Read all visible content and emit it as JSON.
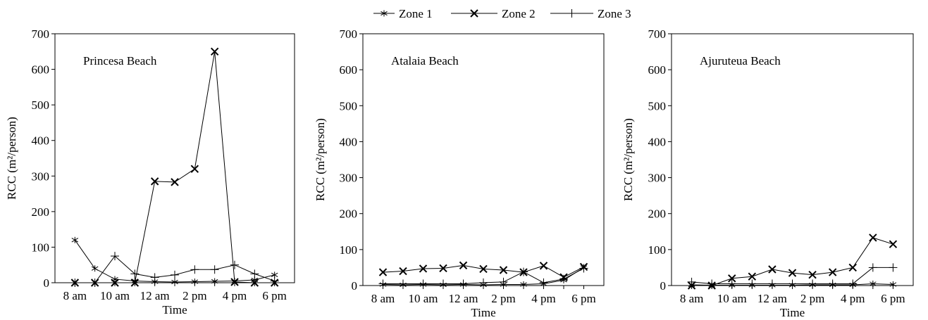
{
  "chart_data": [
    {
      "type": "line",
      "title": "Princesa Beach",
      "xlabel": "Time",
      "ylabel": "RCC (m²/person)",
      "ylim": [
        0,
        700
      ],
      "yticks": [
        "0",
        "100",
        "200",
        "300",
        "400",
        "500",
        "600",
        "700"
      ],
      "x_tick_labels": [
        "8 am",
        "10 am",
        "12 am",
        "2 pm",
        "4 pm",
        "6 pm"
      ],
      "x": [
        "8 am",
        "9 am",
        "10 am",
        "11 am",
        "12 am",
        "1 pm",
        "2 pm",
        "3 pm",
        "4 pm",
        "5 pm",
        "6 pm"
      ],
      "series": [
        {
          "name": "Zone 1",
          "values": [
            120,
            40,
            10,
            5,
            3,
            2,
            3,
            4,
            5,
            8,
            22
          ]
        },
        {
          "name": "Zone 2",
          "values": [
            0,
            0,
            0,
            0,
            285,
            283,
            320,
            650,
            2,
            0,
            0
          ]
        },
        {
          "name": "Zone 3",
          "values": [
            0,
            0,
            75,
            25,
            15,
            22,
            37,
            37,
            50,
            25,
            5
          ]
        }
      ],
      "grid": false,
      "legend": "top-center"
    },
    {
      "type": "line",
      "title": "Atalaia Beach",
      "xlabel": "Time",
      "ylabel": "RCC (m²/person)",
      "ylim": [
        0,
        700
      ],
      "yticks": [
        "0",
        "100",
        "200",
        "300",
        "400",
        "500",
        "600",
        "700"
      ],
      "x_tick_labels": [
        "8 am",
        "10 am",
        "12 am",
        "2 pm",
        "4 pm",
        "6 pm"
      ],
      "x": [
        "8 am",
        "9 am",
        "10 am",
        "11 am",
        "12 am",
        "1 pm",
        "2 pm",
        "3 pm",
        "4 pm",
        "5 pm",
        "6 pm"
      ],
      "series": [
        {
          "name": "Zone 1",
          "values": [
            3,
            2,
            3,
            2,
            3,
            2,
            3,
            3,
            5,
            15,
            50
          ]
        },
        {
          "name": "Zone 2",
          "values": [
            37,
            40,
            47,
            48,
            56,
            46,
            43,
            37,
            55,
            23,
            52
          ]
        },
        {
          "name": "Zone 3",
          "values": [
            5,
            5,
            5,
            5,
            5,
            8,
            10,
            38,
            8,
            18,
            48
          ]
        }
      ],
      "grid": false,
      "legend": "top-center"
    },
    {
      "type": "line",
      "title": "Ajuruteua Beach",
      "xlabel": "Time",
      "ylabel": "RCC (m²/person)",
      "ylim": [
        0,
        700
      ],
      "yticks": [
        "0",
        "100",
        "200",
        "300",
        "400",
        "500",
        "600",
        "700"
      ],
      "x_tick_labels": [
        "8 am",
        "10 am",
        "12 am",
        "2 pm",
        "4 pm",
        "6 pm"
      ],
      "x": [
        "8 am",
        "9 am",
        "10 am",
        "11 am",
        "12 am",
        "1 pm",
        "2 pm",
        "3 pm",
        "4 pm",
        "5 pm",
        "6 pm"
      ],
      "series": [
        {
          "name": "Zone 1",
          "values": [
            2,
            1,
            1,
            1,
            1,
            1,
            2,
            2,
            2,
            5,
            3
          ]
        },
        {
          "name": "Zone 2",
          "values": [
            0,
            0,
            20,
            25,
            45,
            35,
            30,
            37,
            50,
            133,
            115
          ]
        },
        {
          "name": "Zone 3",
          "values": [
            10,
            5,
            5,
            5,
            5,
            5,
            5,
            5,
            5,
            50,
            50
          ]
        }
      ],
      "grid": false,
      "legend": "top-center"
    }
  ]
}
